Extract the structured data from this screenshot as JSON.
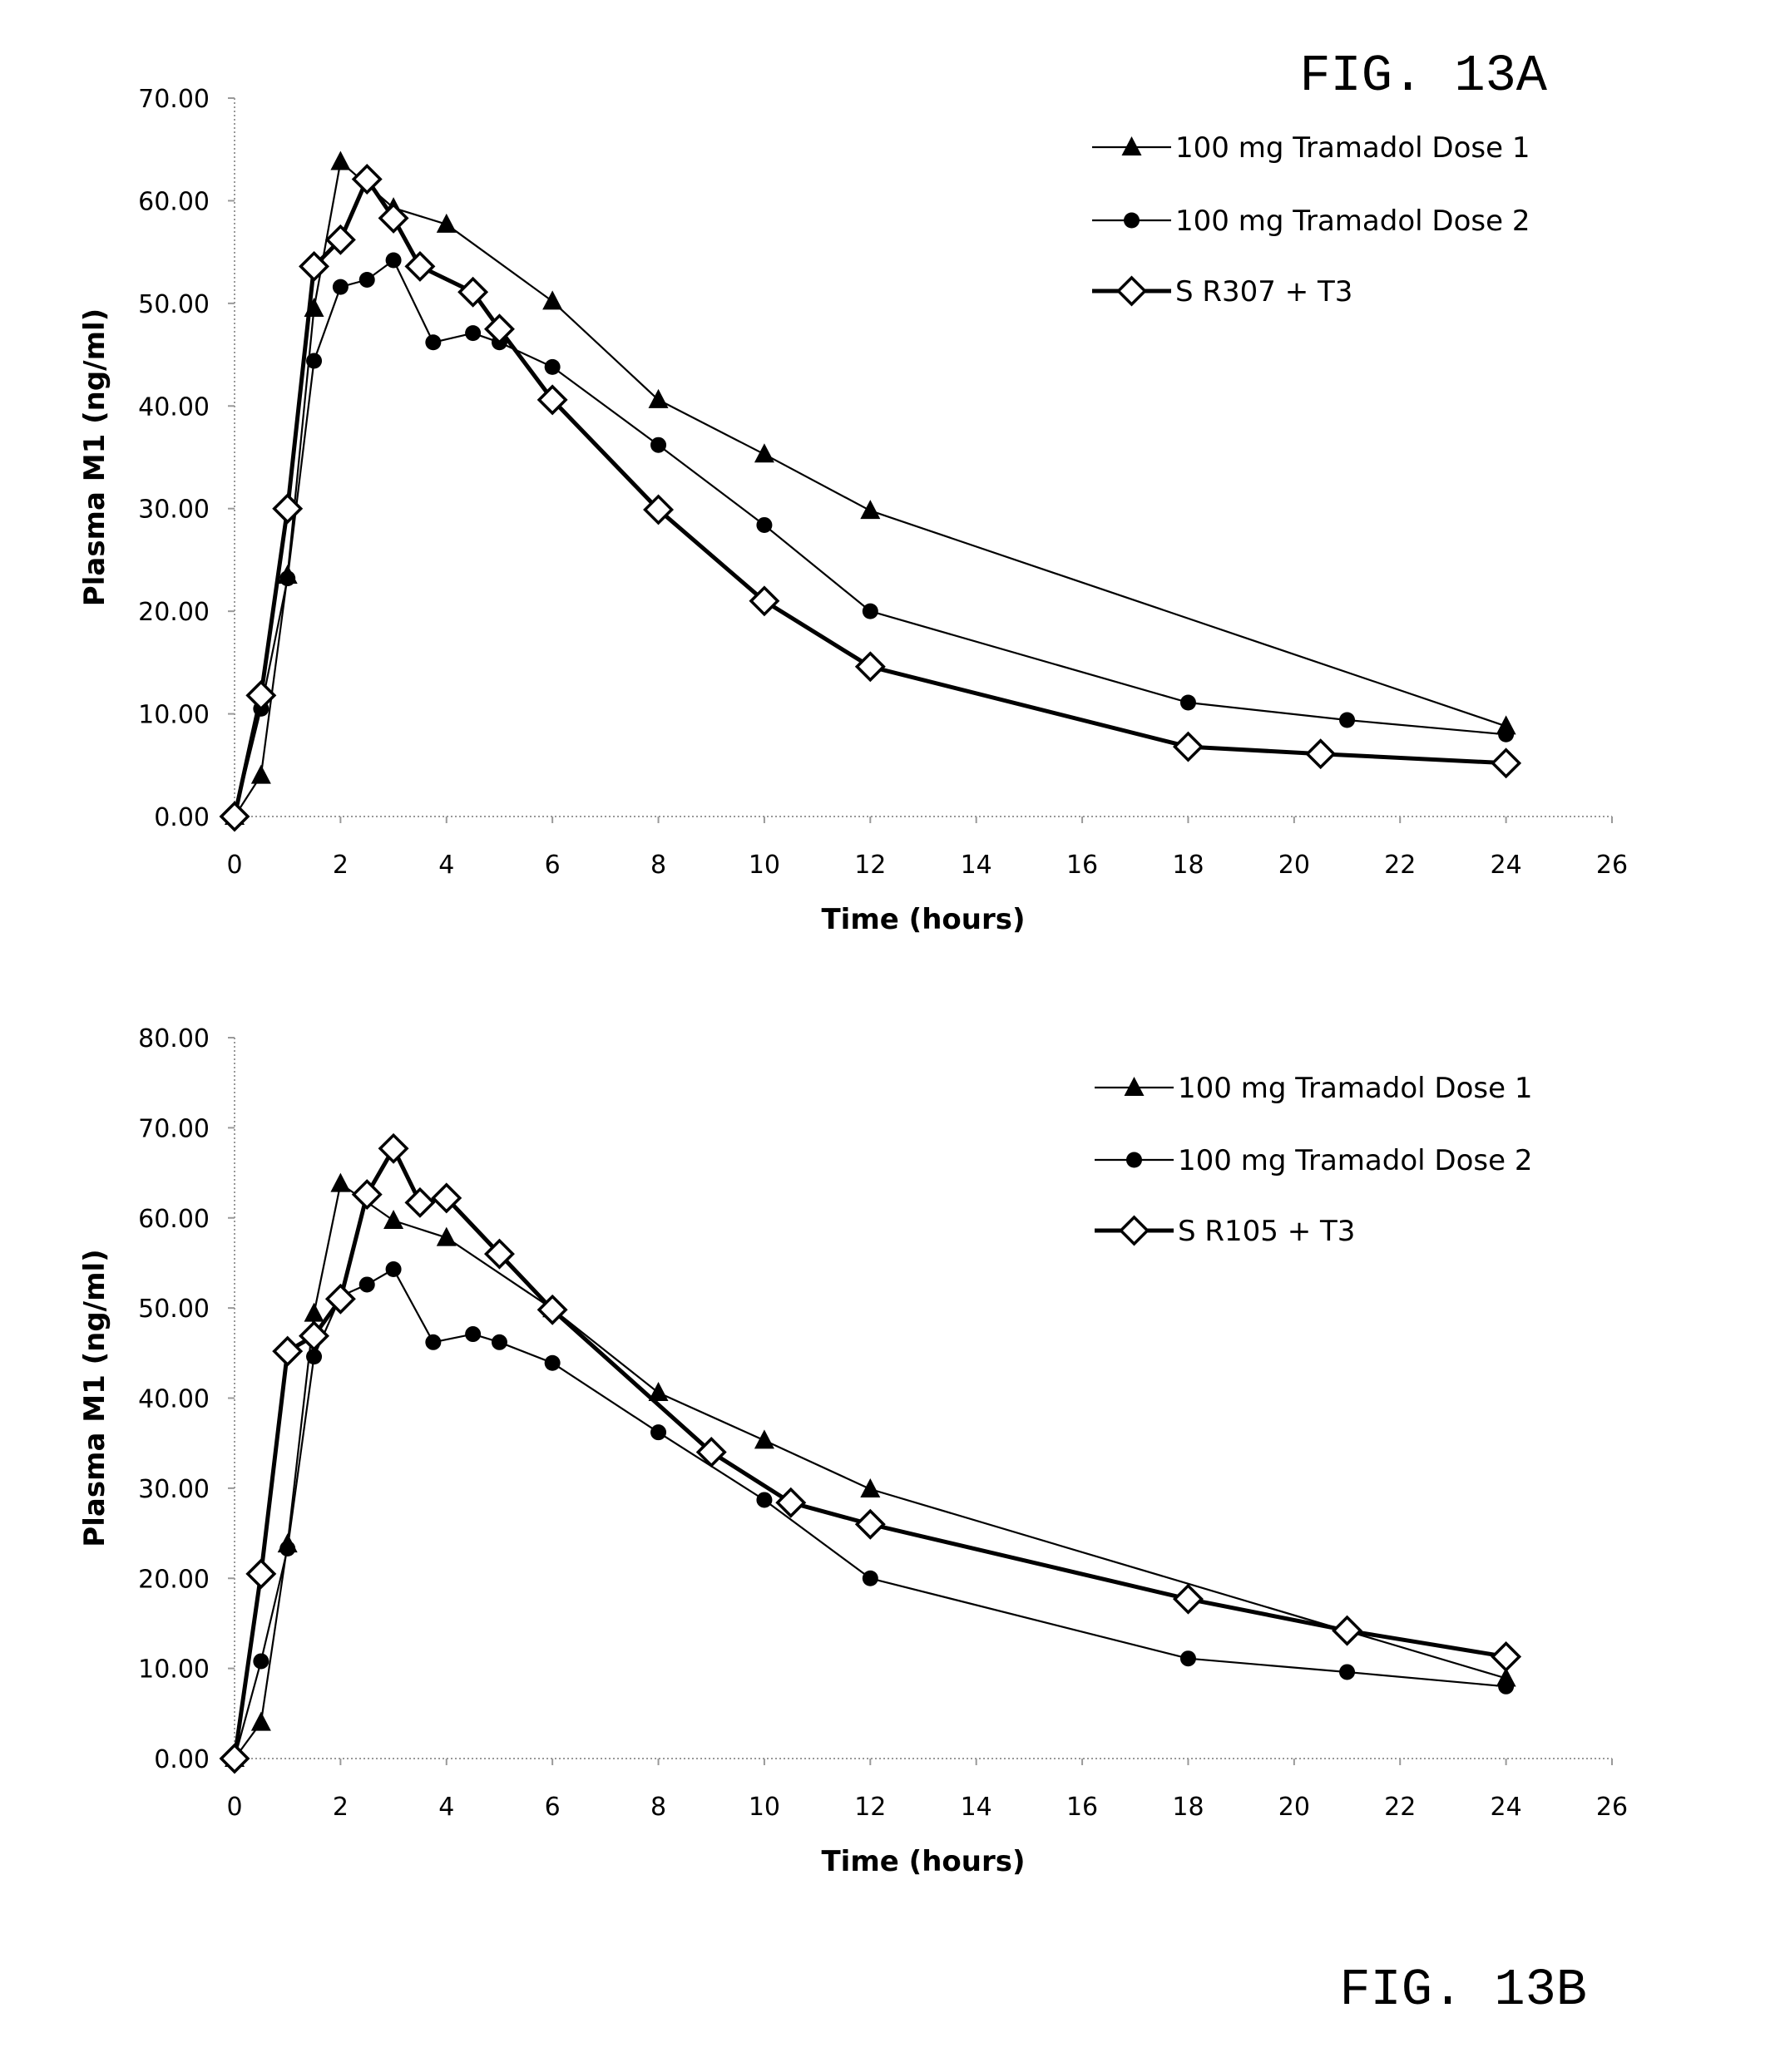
{
  "chart_data": [
    {
      "type": "line",
      "figure_label": "FIG. 13A",
      "xlabel": "Time (hours)",
      "ylabel": "Plasma M1 (ng/ml)",
      "xlim": [
        0,
        26
      ],
      "ylim": [
        0,
        70
      ],
      "x_ticks": [
        "0",
        "2",
        "4",
        "6",
        "8",
        "10",
        "12",
        "14",
        "16",
        "18",
        "20",
        "22",
        "24",
        "26"
      ],
      "y_ticks": [
        "0.00",
        "10.00",
        "20.00",
        "30.00",
        "40.00",
        "50.00",
        "60.00",
        "70.00"
      ],
      "grid": false,
      "legend_position": "top-right",
      "series": [
        {
          "name": "100 mg Tramadol Dose 1",
          "marker": "triangle",
          "x": [
            0,
            0.5,
            1,
            1.5,
            2,
            3,
            4,
            6,
            8,
            10,
            12,
            24
          ],
          "y": [
            0,
            4.0,
            23.5,
            49.5,
            63.8,
            59.3,
            57.7,
            50.2,
            40.6,
            35.3,
            29.8,
            8.8
          ]
        },
        {
          "name": "100 mg Tramadol Dose 2",
          "marker": "circle",
          "x": [
            0,
            0.5,
            1,
            1.5,
            2,
            2.5,
            3,
            3.75,
            4.5,
            5,
            6,
            8,
            10,
            12,
            18,
            21,
            24
          ],
          "y": [
            0,
            10.5,
            23.2,
            44.4,
            51.6,
            52.3,
            54.2,
            46.2,
            47.1,
            46.2,
            43.8,
            36.2,
            28.4,
            20.0,
            11.1,
            9.4,
            8.0
          ]
        },
        {
          "name": "S R307 + T3",
          "marker": "diamond",
          "x": [
            0,
            0.5,
            1,
            1.5,
            2,
            2.5,
            3,
            3.5,
            4.5,
            5,
            6,
            8,
            10,
            12,
            18,
            20.5,
            24
          ],
          "y": [
            0,
            11.8,
            30.0,
            53.6,
            56.2,
            62.1,
            58.3,
            53.6,
            51.1,
            47.5,
            40.6,
            29.9,
            21.0,
            14.6,
            6.8,
            6.1,
            5.2
          ]
        }
      ]
    },
    {
      "type": "line",
      "figure_label": "FIG. 13B",
      "xlabel": "Time (hours)",
      "ylabel": "Plasma M1 (ng/ml)",
      "xlim": [
        0,
        26
      ],
      "ylim": [
        0,
        80
      ],
      "x_ticks": [
        "0",
        "2",
        "4",
        "6",
        "8",
        "10",
        "12",
        "14",
        "16",
        "18",
        "20",
        "22",
        "24",
        "26"
      ],
      "y_ticks": [
        "0.00",
        "10.00",
        "20.00",
        "30.00",
        "40.00",
        "50.00",
        "60.00",
        "70.00",
        "80.00"
      ],
      "grid": false,
      "legend_position": "top-right",
      "series": [
        {
          "name": "100 mg Tramadol Dose 1",
          "marker": "triangle",
          "x": [
            0,
            0.5,
            1,
            1.5,
            2,
            3,
            4,
            6,
            8,
            10,
            12,
            24
          ],
          "y": [
            0,
            4.0,
            23.8,
            49.4,
            63.8,
            59.7,
            57.8,
            49.9,
            40.6,
            35.3,
            29.9,
            8.9
          ]
        },
        {
          "name": "100 mg Tramadol Dose 2",
          "marker": "circle",
          "x": [
            0,
            0.5,
            1,
            1.5,
            2,
            2.5,
            3,
            3.75,
            4.5,
            5,
            6,
            8,
            10,
            12,
            18,
            21,
            24
          ],
          "y": [
            0,
            10.8,
            23.3,
            44.6,
            51.3,
            52.6,
            54.3,
            46.2,
            47.1,
            46.2,
            43.9,
            36.2,
            28.7,
            20.0,
            11.1,
            9.6,
            8.0
          ]
        },
        {
          "name": "S R105 + T3",
          "marker": "diamond",
          "x": [
            0,
            0.5,
            1,
            1.5,
            2,
            2.5,
            3,
            3.5,
            4,
            5,
            6,
            9,
            10.5,
            12,
            18,
            21,
            24
          ],
          "y": [
            0,
            20.5,
            45.2,
            46.9,
            51.0,
            62.6,
            67.7,
            61.7,
            62.2,
            56.0,
            49.8,
            34.0,
            28.4,
            26.0,
            17.7,
            14.2,
            11.3
          ]
        }
      ]
    }
  ]
}
